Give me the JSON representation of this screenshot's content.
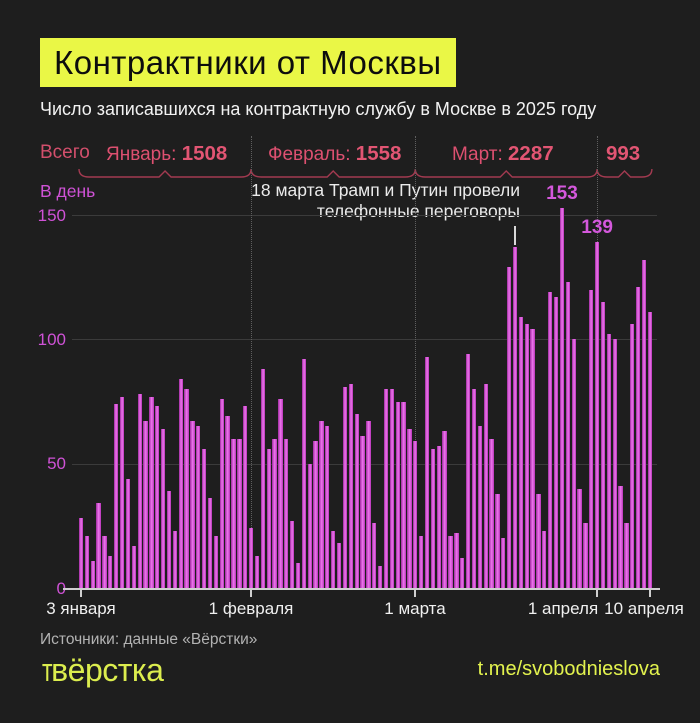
{
  "page": {
    "background": "#1e1e1e"
  },
  "header": {
    "title": "Контрактники от Москвы",
    "title_bg_color": "#eaf746",
    "subtitle": "Число записавшихся на контрактную службу в Москве в 2025 году"
  },
  "totals_row": {
    "label": "Всего",
    "color": "#dd5070",
    "items": [
      {
        "month": "Январь:",
        "value": "1508"
      },
      {
        "month": "Февраль:",
        "value": "1558"
      },
      {
        "month": "Март:",
        "value": "2287"
      },
      {
        "month": "",
        "value": "993"
      }
    ]
  },
  "chart_data": {
    "type": "bar",
    "unit_label": "В день",
    "ylim": [
      0,
      150
    ],
    "y_ticks": [
      0,
      50,
      100,
      150
    ],
    "x_tick_labels": [
      "3 января",
      "1 февраля",
      "1 марта",
      "1 апреля",
      "10 апреля"
    ],
    "grid": "horizontal solid + vertical dotted month separators",
    "legend_position": "none",
    "bar_color": "#d24fd2",
    "monthly_totals": {
      "Январь": 1508,
      "Февраль": 1558,
      "Март": 2287,
      "Апрель 1-10": 993
    },
    "series": [
      {
        "name": "Январь (3–31)",
        "values": [
          28,
          21,
          11,
          34,
          21,
          13,
          74,
          77,
          44,
          17,
          78,
          67,
          77,
          73,
          64,
          39,
          23,
          84,
          80,
          67,
          65,
          56,
          36,
          21,
          76,
          69,
          60,
          60,
          73
        ]
      },
      {
        "name": "Февраль",
        "values": [
          24,
          13,
          88,
          56,
          60,
          76,
          60,
          27,
          10,
          92,
          50,
          59,
          67,
          65,
          23,
          18,
          81,
          82,
          70,
          61,
          67,
          26,
          9,
          80,
          80,
          75,
          75,
          64
        ]
      },
      {
        "name": "Март",
        "values": [
          59,
          21,
          93,
          56,
          57,
          63,
          21,
          22,
          12,
          94,
          80,
          65,
          82,
          60,
          38,
          20,
          129,
          137,
          109,
          106,
          104,
          38,
          23,
          119,
          117,
          153,
          123,
          100,
          40,
          26,
          120
        ]
      },
      {
        "name": "Апрель (1–10)",
        "values": [
          139,
          115,
          102,
          100,
          41,
          26,
          106,
          121,
          132,
          111
        ]
      }
    ],
    "bar_value_labels": [
      {
        "text": "153",
        "flat_index": 82
      },
      {
        "text": "139",
        "flat_index": 88
      }
    ],
    "annotation": {
      "line1": "18 марта Трамп и Путин провели",
      "line2": "телефонные переговоры",
      "pointer_flat_index": 74
    }
  },
  "footer": {
    "source": "Источники: данные «Вёрстки»",
    "logo_prefix": "т",
    "logo_text": "вёрстка",
    "link": "t.me/svobodnieslova"
  }
}
